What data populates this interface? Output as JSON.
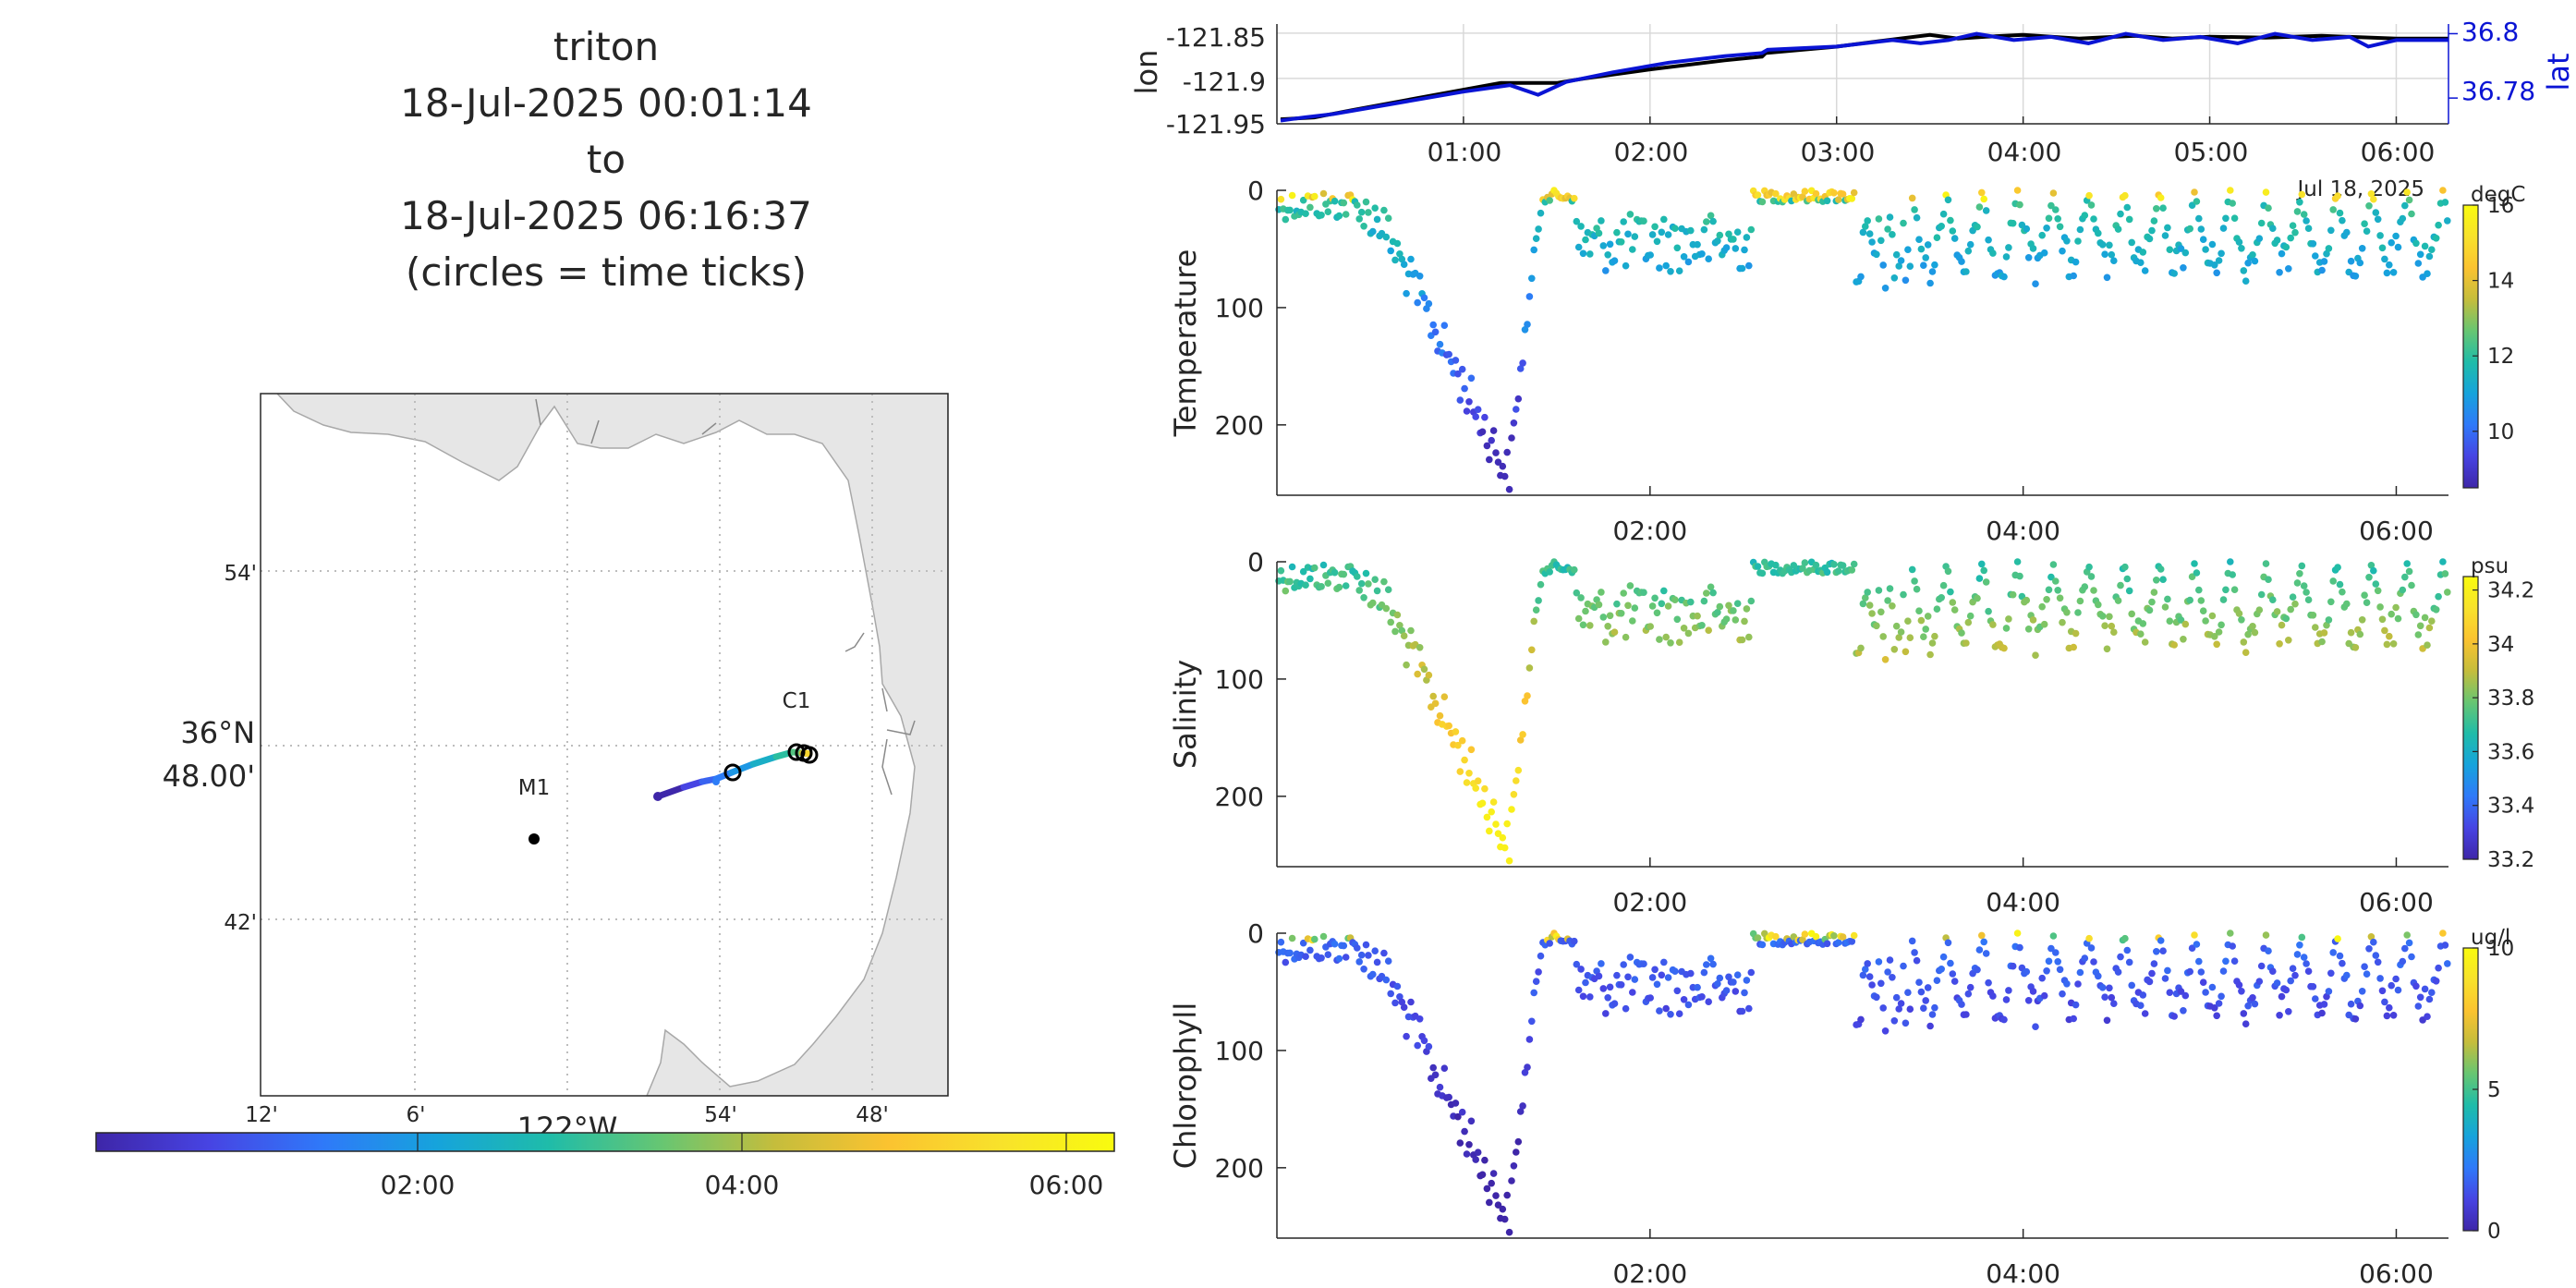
{
  "colors": {
    "land": "#e6e6e6",
    "coast": "#a8a8a8",
    "grid": "#bdbdbd",
    "lon_line": "#000000",
    "lat_line": "#0a14d4",
    "axis": "#262626"
  },
  "colormap_stops": [
    "#3e26a8",
    "#4744e3",
    "#2f79f9",
    "#16a3dc",
    "#1fbca9",
    "#67c672",
    "#c5bd3c",
    "#fbc330",
    "#f8e22b",
    "#f9fb0e"
  ],
  "header": {
    "platform": "triton",
    "start": "18-Jul-2025 00:01:14",
    "to": "to",
    "end": "18-Jul-2025 06:16:37",
    "note": "(circles = time ticks)"
  },
  "map": {
    "lat_ticks": [
      "54'",
      "48.00'",
      "42'"
    ],
    "lat_degree_label": "36°N",
    "lon_ticks": [
      "12'",
      "6'",
      "54'",
      "48'"
    ],
    "lon_degree_label": "122°W",
    "stations": [
      {
        "name": "M1",
        "lat": 36.747,
        "lon": -122.022
      },
      {
        "name": "C1",
        "lat": 36.797,
        "lon": -121.847
      }
    ],
    "time_colorbar_ticks": [
      "02:00",
      "04:00",
      "06:00"
    ]
  },
  "chart_data": [
    {
      "type": "line",
      "title": "",
      "xlabel": "",
      "ylabel": "lon",
      "ylabel_right": "lat",
      "x_ticks": [
        "01:00",
        "02:00",
        "03:00",
        "04:00",
        "05:00",
        "06:00"
      ],
      "x_corner_label": "Jul 18, 2025",
      "ylim_left": [
        -121.95,
        -121.84
      ],
      "yticks_left": [
        "-121.85",
        "-121.9",
        "-121.95"
      ],
      "ylim_right": [
        36.772,
        36.803
      ],
      "yticks_right": [
        "36.8",
        "36.78"
      ],
      "grid": true,
      "series": [
        {
          "name": "lon",
          "axis": "left",
          "x": [
            0.02,
            0.2,
            0.4,
            0.8,
            1.2,
            1.3,
            1.5,
            1.65,
            2.0,
            2.4,
            2.6,
            2.62,
            3.0,
            3.3,
            3.5,
            3.65,
            3.8,
            4.0,
            4.3,
            4.6,
            4.8,
            5.0,
            5.3,
            5.6,
            6.0,
            6.28
          ],
          "y": [
            -121.945,
            -121.943,
            -121.935,
            -121.92,
            -121.905,
            -121.905,
            -121.905,
            -121.9,
            -121.89,
            -121.88,
            -121.876,
            -121.872,
            -121.865,
            -121.857,
            -121.852,
            -121.856,
            -121.854,
            -121.852,
            -121.856,
            -121.853,
            -121.856,
            -121.854,
            -121.855,
            -121.853,
            -121.856,
            -121.856
          ]
        },
        {
          "name": "lat",
          "axis": "right",
          "x": [
            0.02,
            0.15,
            0.3,
            0.6,
            1.0,
            1.25,
            1.4,
            1.55,
            1.8,
            2.1,
            2.4,
            2.6,
            2.63,
            3.0,
            3.3,
            3.45,
            3.6,
            3.75,
            3.95,
            4.15,
            4.35,
            4.55,
            4.75,
            4.95,
            5.15,
            5.35,
            5.55,
            5.75,
            5.85,
            6.0,
            6.28
          ],
          "y": [
            36.773,
            36.774,
            36.775,
            36.778,
            36.782,
            36.784,
            36.781,
            36.785,
            36.788,
            36.791,
            36.793,
            36.794,
            36.795,
            36.796,
            36.798,
            36.797,
            36.798,
            36.8,
            36.798,
            36.799,
            36.797,
            36.8,
            36.798,
            36.799,
            36.797,
            36.8,
            36.798,
            36.799,
            36.796,
            36.798,
            36.798
          ]
        }
      ]
    },
    {
      "type": "scatter",
      "title": "",
      "xlabel": "",
      "ylabel": "Temperature",
      "units": "degC",
      "x_ticks": [
        "02:00",
        "04:00",
        "06:00"
      ],
      "y_ticks": [
        "0",
        "100",
        "200"
      ],
      "ylim": [
        260,
        0
      ],
      "clim": [
        8.5,
        16
      ],
      "colorbar_ticks": [
        "16",
        "14",
        "12",
        "10"
      ],
      "note": "x = hours after 00:00 on 18-Jul-2025; y = depth (m); c = value"
    },
    {
      "type": "scatter",
      "title": "",
      "xlabel": "",
      "ylabel": "Salinity",
      "units": "psu",
      "x_ticks": [
        "02:00",
        "04:00",
        "06:00"
      ],
      "y_ticks": [
        "0",
        "100",
        "200"
      ],
      "ylim": [
        260,
        0
      ],
      "clim": [
        33.2,
        34.25
      ],
      "colorbar_ticks": [
        "34.2",
        "34",
        "33.8",
        "33.6",
        "33.4",
        "33.2"
      ]
    },
    {
      "type": "scatter",
      "title": "",
      "xlabel": "",
      "ylabel": "Chlorophyll",
      "units": "ug/l",
      "x_ticks": [
        "02:00",
        "04:00",
        "06:00"
      ],
      "y_ticks": [
        "0",
        "100",
        "200"
      ],
      "ylim": [
        260,
        0
      ],
      "clim": [
        0,
        10
      ],
      "colorbar_ticks": [
        "10",
        "5",
        "0"
      ]
    }
  ]
}
